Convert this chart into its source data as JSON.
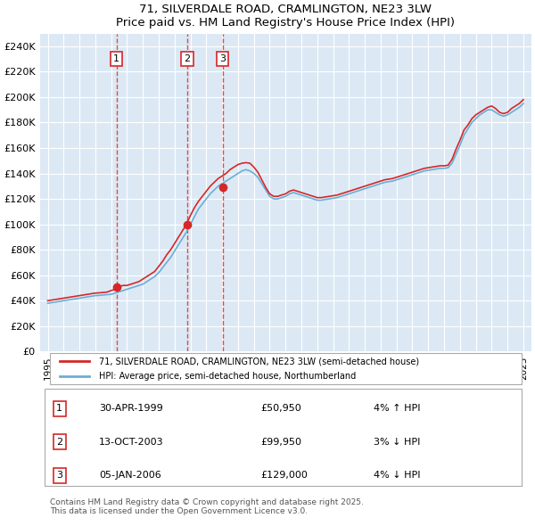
{
  "title": "71, SILVERDALE ROAD, CRAMLINGTON, NE23 3LW",
  "subtitle": "Price paid vs. HM Land Registry's House Price Index (HPI)",
  "ylabel_ticks": [
    "£0",
    "£20K",
    "£40K",
    "£60K",
    "£80K",
    "£100K",
    "£120K",
    "£140K",
    "£160K",
    "£180K",
    "£200K",
    "£220K",
    "£240K"
  ],
  "ytick_vals": [
    0,
    20000,
    40000,
    60000,
    80000,
    100000,
    120000,
    140000,
    160000,
    180000,
    200000,
    220000,
    240000
  ],
  "ylim": [
    0,
    250000
  ],
  "background_color": "#dce9f5",
  "plot_bg_color": "#dce9f5",
  "legend_label_red": "71, SILVERDALE ROAD, CRAMLINGTON, NE23 3LW (semi-detached house)",
  "legend_label_blue": "HPI: Average price, semi-detached house, Northumberland",
  "sales": [
    {
      "num": 1,
      "date": "30-APR-1999",
      "price": "£50,950",
      "pct": "4%",
      "dir": "↑",
      "year": 1999.33
    },
    {
      "num": 2,
      "date": "13-OCT-2003",
      "price": "£99,950",
      "pct": "3%",
      "dir": "↓",
      "year": 2003.79
    },
    {
      "num": 3,
      "date": "05-JAN-2006",
      "price": "£129,000",
      "pct": "4%",
      "dir": "↓",
      "year": 2006.03
    }
  ],
  "sale_prices": [
    50950,
    99950,
    129000
  ],
  "footnote": "Contains HM Land Registry data © Crown copyright and database right 2025.\nThis data is licensed under the Open Government Licence v3.0.",
  "hpi_years": [
    1995,
    1995.25,
    1995.5,
    1995.75,
    1996,
    1996.25,
    1996.5,
    1996.75,
    1997,
    1997.25,
    1997.5,
    1997.75,
    1998,
    1998.25,
    1998.5,
    1998.75,
    1999,
    1999.25,
    1999.5,
    1999.75,
    2000,
    2000.25,
    2000.5,
    2000.75,
    2001,
    2001.25,
    2001.5,
    2001.75,
    2002,
    2002.25,
    2002.5,
    2002.75,
    2003,
    2003.25,
    2003.5,
    2003.75,
    2004,
    2004.25,
    2004.5,
    2004.75,
    2005,
    2005.25,
    2005.5,
    2005.75,
    2006,
    2006.25,
    2006.5,
    2006.75,
    2007,
    2007.25,
    2007.5,
    2007.75,
    2008,
    2008.25,
    2008.5,
    2008.75,
    2009,
    2009.25,
    2009.5,
    2009.75,
    2010,
    2010.25,
    2010.5,
    2010.75,
    2011,
    2011.25,
    2011.5,
    2011.75,
    2012,
    2012.25,
    2012.5,
    2012.75,
    2013,
    2013.25,
    2013.5,
    2013.75,
    2014,
    2014.25,
    2014.5,
    2014.75,
    2015,
    2015.25,
    2015.5,
    2015.75,
    2016,
    2016.25,
    2016.5,
    2016.75,
    2017,
    2017.25,
    2017.5,
    2017.75,
    2018,
    2018.25,
    2018.5,
    2018.75,
    2019,
    2019.25,
    2019.5,
    2019.75,
    2020,
    2020.25,
    2020.5,
    2020.75,
    2021,
    2021.25,
    2021.5,
    2021.75,
    2022,
    2022.25,
    2022.5,
    2022.75,
    2023,
    2023.25,
    2023.5,
    2023.75,
    2024,
    2024.25,
    2024.5,
    2024.75,
    2025
  ],
  "hpi_values": [
    38000,
    38500,
    39000,
    39500,
    40000,
    40500,
    41000,
    41500,
    42000,
    42500,
    43000,
    43500,
    44000,
    44200,
    44500,
    44800,
    45000,
    46000,
    47000,
    48000,
    49000,
    50000,
    51000,
    52000,
    53000,
    55000,
    57000,
    59000,
    62000,
    66000,
    70000,
    74000,
    79000,
    84000,
    89000,
    94000,
    100000,
    106000,
    112000,
    116000,
    120000,
    124000,
    127000,
    130000,
    132000,
    134000,
    136000,
    138000,
    140000,
    142000,
    143000,
    142000,
    140000,
    137000,
    132000,
    127000,
    122000,
    120000,
    120000,
    121000,
    122000,
    124000,
    125000,
    124000,
    123000,
    122000,
    121000,
    120000,
    119000,
    119000,
    119500,
    120000,
    120500,
    121000,
    122000,
    123000,
    124000,
    125000,
    126000,
    127000,
    128000,
    129000,
    130000,
    131000,
    132000,
    133000,
    133500,
    134000,
    135000,
    136000,
    137000,
    138000,
    139000,
    140000,
    141000,
    142000,
    142500,
    143000,
    143500,
    144000,
    144000,
    144500,
    148000,
    155000,
    162000,
    170000,
    175000,
    180000,
    183000,
    186000,
    188000,
    190000,
    190000,
    188000,
    186000,
    185000,
    186000,
    188000,
    190000,
    192000,
    195000
  ],
  "red_years": [
    1995,
    1995.25,
    1995.5,
    1995.75,
    1996,
    1996.25,
    1996.5,
    1996.75,
    1997,
    1997.25,
    1997.5,
    1997.75,
    1998,
    1998.25,
    1998.5,
    1998.75,
    1999,
    1999.25,
    1999.5,
    1999.75,
    2000,
    2000.25,
    2000.5,
    2000.75,
    2001,
    2001.25,
    2001.5,
    2001.75,
    2002,
    2002.25,
    2002.5,
    2002.75,
    2003,
    2003.25,
    2003.5,
    2003.75,
    2004,
    2004.25,
    2004.5,
    2004.75,
    2005,
    2005.25,
    2005.5,
    2005.75,
    2006,
    2006.25,
    2006.5,
    2006.75,
    2007,
    2007.25,
    2007.5,
    2007.75,
    2008,
    2008.25,
    2008.5,
    2008.75,
    2009,
    2009.25,
    2009.5,
    2009.75,
    2010,
    2010.25,
    2010.5,
    2010.75,
    2011,
    2011.25,
    2011.5,
    2011.75,
    2012,
    2012.25,
    2012.5,
    2012.75,
    2013,
    2013.25,
    2013.5,
    2013.75,
    2014,
    2014.25,
    2014.5,
    2014.75,
    2015,
    2015.25,
    2015.5,
    2015.75,
    2016,
    2016.25,
    2016.5,
    2016.75,
    2017,
    2017.25,
    2017.5,
    2017.75,
    2018,
    2018.25,
    2018.5,
    2018.75,
    2019,
    2019.25,
    2019.5,
    2019.75,
    2020,
    2020.25,
    2020.5,
    2020.75,
    2021,
    2021.25,
    2021.5,
    2021.75,
    2022,
    2022.25,
    2022.5,
    2022.75,
    2023,
    2023.25,
    2023.5,
    2023.75,
    2024,
    2024.25,
    2024.5,
    2024.75,
    2025
  ],
  "red_values": [
    40000,
    40500,
    41000,
    41500,
    42000,
    42500,
    43000,
    43500,
    44000,
    44500,
    45000,
    45500,
    46000,
    46200,
    46500,
    46800,
    48000,
    49000,
    51000,
    52000,
    52000,
    53000,
    54000,
    55000,
    57000,
    59000,
    61000,
    63000,
    67000,
    71000,
    76000,
    80000,
    85000,
    90000,
    95000,
    100000,
    107000,
    113000,
    118000,
    122000,
    126000,
    130000,
    133000,
    136000,
    138000,
    140000,
    143000,
    145000,
    147000,
    148000,
    148500,
    148000,
    145000,
    141000,
    135000,
    129000,
    124000,
    122000,
    122000,
    123000,
    124000,
    126000,
    127000,
    126000,
    125000,
    124000,
    123000,
    122000,
    121000,
    121000,
    121500,
    122000,
    122500,
    123000,
    124000,
    125000,
    126000,
    127000,
    128000,
    129000,
    130000,
    131000,
    132000,
    133000,
    134000,
    135000,
    135500,
    136000,
    137000,
    138000,
    139000,
    140000,
    141000,
    142000,
    143000,
    144000,
    144500,
    145000,
    145500,
    146000,
    146000,
    146500,
    151000,
    159000,
    166000,
    174000,
    178000,
    183000,
    186000,
    188000,
    190000,
    192000,
    193000,
    191000,
    188000,
    187000,
    188000,
    191000,
    193000,
    195000,
    198000
  ]
}
